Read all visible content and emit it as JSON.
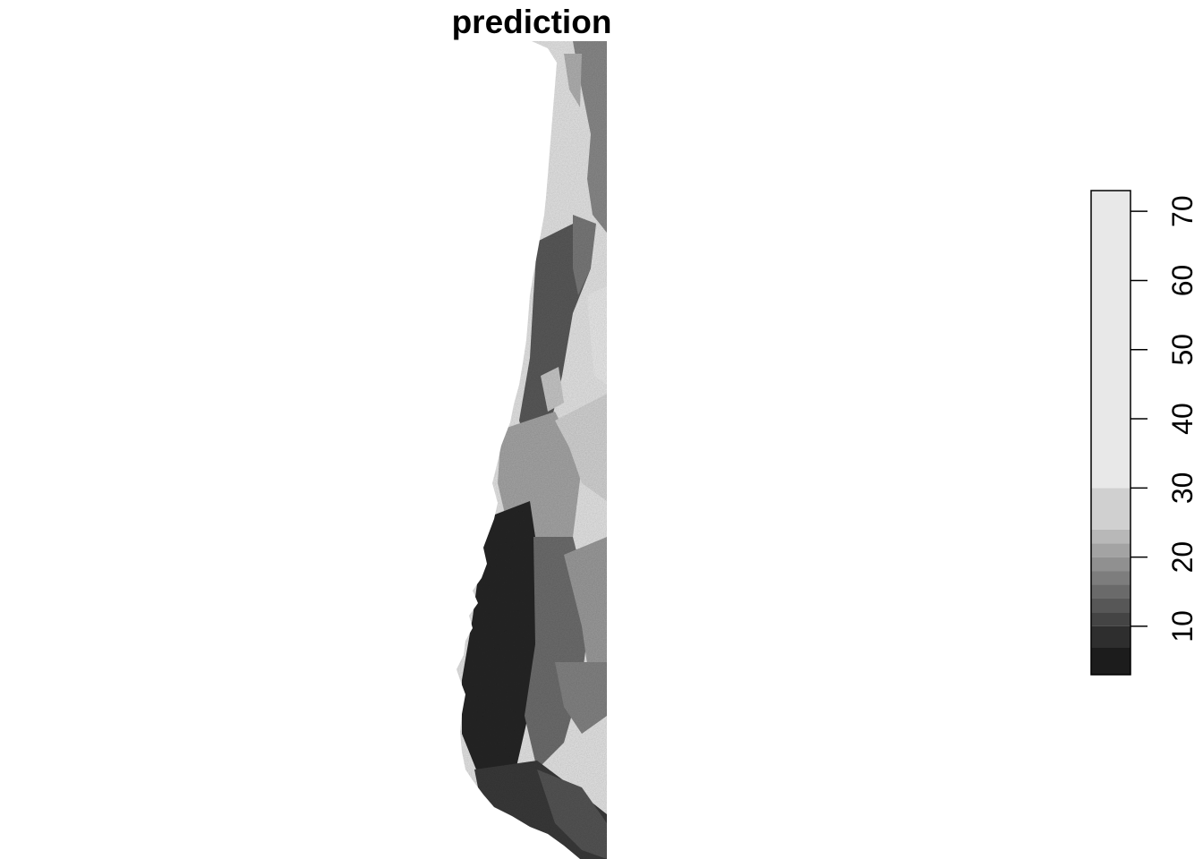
{
  "map": {
    "title": "prediction"
  },
  "legend": {
    "min": 3,
    "max": 73,
    "breaks": [
      3,
      7,
      10,
      12,
      14,
      16,
      18,
      20,
      22,
      24,
      30,
      73
    ],
    "colors": [
      "#1c1c1c",
      "#2e2e2e",
      "#444444",
      "#575757",
      "#6a6a6a",
      "#7d7d7d",
      "#909090",
      "#a3a3a3",
      "#b8b8b8",
      "#d0d0d0",
      "#e8e8e8"
    ],
    "ticks": [
      {
        "value": 10,
        "label": "10"
      },
      {
        "value": 20,
        "label": "20"
      },
      {
        "value": 30,
        "label": "30"
      },
      {
        "value": 40,
        "label": "40"
      },
      {
        "value": 50,
        "label": "50"
      },
      {
        "value": 60,
        "label": "60"
      },
      {
        "value": 70,
        "label": "70"
      }
    ]
  }
}
